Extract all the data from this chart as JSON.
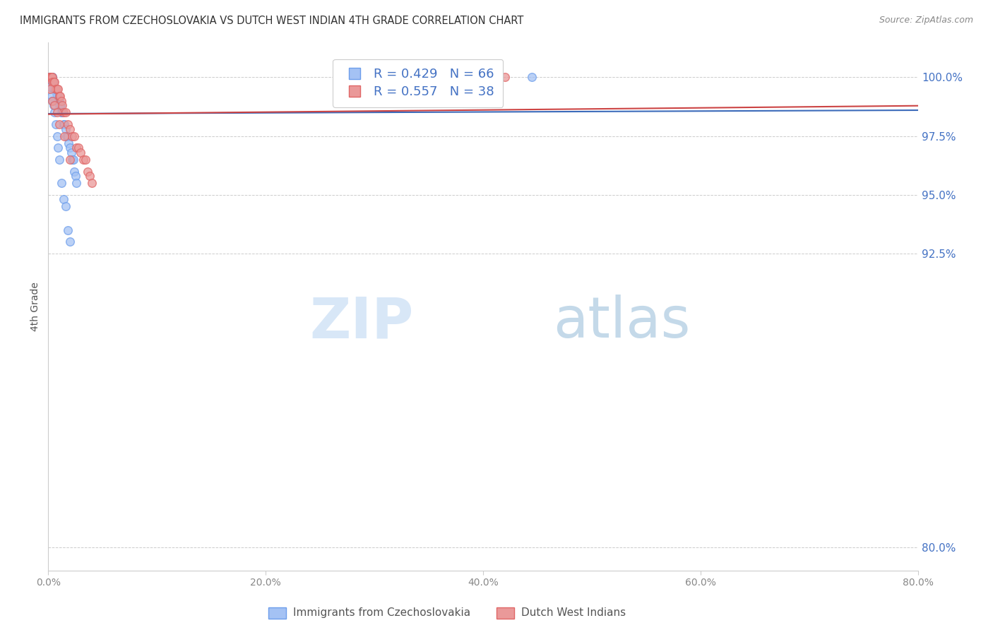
{
  "title": "IMMIGRANTS FROM CZECHOSLOVAKIA VS DUTCH WEST INDIAN 4TH GRADE CORRELATION CHART",
  "source": "Source: ZipAtlas.com",
  "ylabel": "4th Grade",
  "yticks": [
    80.0,
    92.5,
    95.0,
    97.5,
    100.0
  ],
  "ytick_labels": [
    "80.0%",
    "92.5%",
    "95.0%",
    "97.5%",
    "100.0%"
  ],
  "xmin": 0.0,
  "xmax": 80.0,
  "ymin": 79.0,
  "ymax": 101.5,
  "blue_R": 0.429,
  "blue_N": 66,
  "pink_R": 0.557,
  "pink_N": 38,
  "blue_color": "#a4c2f4",
  "pink_color": "#ea9999",
  "blue_edge_color": "#6d9eeb",
  "pink_edge_color": "#e06666",
  "blue_line_color": "#3c6bba",
  "pink_line_color": "#cc4444",
  "legend_label_blue": "Immigrants from Czechoslovakia",
  "legend_label_pink": "Dutch West Indians",
  "watermark_zip": "ZIP",
  "watermark_atlas": "atlas",
  "blue_x": [
    0.05,
    0.08,
    0.1,
    0.12,
    0.15,
    0.18,
    0.2,
    0.22,
    0.25,
    0.28,
    0.3,
    0.32,
    0.35,
    0.38,
    0.4,
    0.42,
    0.45,
    0.48,
    0.5,
    0.52,
    0.55,
    0.58,
    0.6,
    0.65,
    0.7,
    0.75,
    0.8,
    0.85,
    0.9,
    0.95,
    1.0,
    1.05,
    1.1,
    1.15,
    1.2,
    1.25,
    1.3,
    1.4,
    1.5,
    1.6,
    1.7,
    1.8,
    1.9,
    2.0,
    2.1,
    2.2,
    2.3,
    2.4,
    2.5,
    2.6,
    0.1,
    0.2,
    0.3,
    0.4,
    0.5,
    0.6,
    0.7,
    0.8,
    0.9,
    1.0,
    1.2,
    1.4,
    1.6,
    1.8,
    2.0,
    44.5
  ],
  "blue_y": [
    99.8,
    100.0,
    100.0,
    100.0,
    100.0,
    100.0,
    100.0,
    100.0,
    100.0,
    100.0,
    100.0,
    100.0,
    100.0,
    100.0,
    99.8,
    99.8,
    99.8,
    99.8,
    99.8,
    99.8,
    99.5,
    99.5,
    99.5,
    99.5,
    99.5,
    99.3,
    99.3,
    99.3,
    99.0,
    99.0,
    99.0,
    98.8,
    98.8,
    98.8,
    98.5,
    98.5,
    98.5,
    98.0,
    98.0,
    97.8,
    97.5,
    97.5,
    97.2,
    97.0,
    96.8,
    96.5,
    96.5,
    96.0,
    95.8,
    95.5,
    99.6,
    99.6,
    99.2,
    99.0,
    98.8,
    98.5,
    98.0,
    97.5,
    97.0,
    96.5,
    95.5,
    94.8,
    94.5,
    93.5,
    93.0,
    100.0
  ],
  "pink_x": [
    0.1,
    0.15,
    0.2,
    0.25,
    0.3,
    0.35,
    0.4,
    0.5,
    0.6,
    0.7,
    0.8,
    0.9,
    1.0,
    1.1,
    1.2,
    1.3,
    1.4,
    1.6,
    1.8,
    2.0,
    2.2,
    2.4,
    2.6,
    2.8,
    3.0,
    3.2,
    3.4,
    3.6,
    3.8,
    4.0,
    0.2,
    0.4,
    0.6,
    0.8,
    1.0,
    1.5,
    2.0,
    42.0
  ],
  "pink_y": [
    100.0,
    100.0,
    100.0,
    100.0,
    100.0,
    100.0,
    99.8,
    99.8,
    99.8,
    99.5,
    99.5,
    99.5,
    99.2,
    99.2,
    99.0,
    98.8,
    98.5,
    98.5,
    98.0,
    97.8,
    97.5,
    97.5,
    97.0,
    97.0,
    96.8,
    96.5,
    96.5,
    96.0,
    95.8,
    95.5,
    99.5,
    99.0,
    98.8,
    98.5,
    98.0,
    97.5,
    96.5,
    100.0
  ]
}
